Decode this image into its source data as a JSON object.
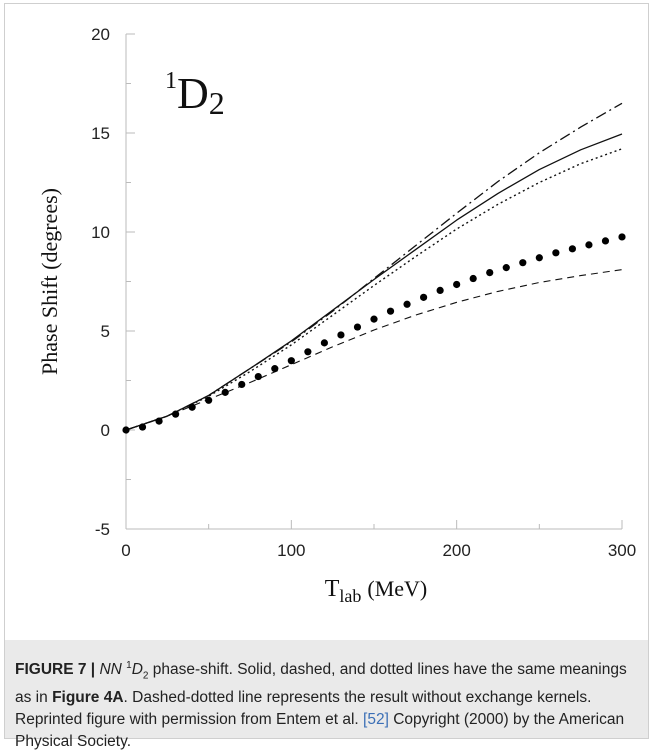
{
  "chart_data": {
    "type": "line",
    "panel_label": "D",
    "panel_label_prefix": "1",
    "panel_label_sub": "2",
    "xlabel_main": "T",
    "xlabel_sub": "lab",
    "xlabel_unit": "(MeV)",
    "ylabel": "Phase Shift (degrees)",
    "xlim": [
      0,
      300
    ],
    "ylim": [
      -5,
      20
    ],
    "xticks": [
      0,
      100,
      200,
      300
    ],
    "yticks": [
      -5,
      0,
      5,
      10,
      15,
      20
    ],
    "x": [
      0,
      25,
      50,
      75,
      100,
      125,
      150,
      175,
      200,
      225,
      250,
      275,
      300
    ],
    "series": [
      {
        "style": "solid",
        "values": [
          0,
          0.7,
          1.75,
          3.1,
          4.5,
          6.05,
          7.6,
          9.1,
          10.6,
          11.95,
          13.15,
          14.15,
          14.95
        ]
      },
      {
        "style": "dashed",
        "values": [
          0,
          0.7,
          1.55,
          2.4,
          3.3,
          4.2,
          5.05,
          5.8,
          6.45,
          7.0,
          7.45,
          7.8,
          8.1
        ]
      },
      {
        "style": "dotted",
        "values": [
          0,
          0.7,
          1.7,
          2.95,
          4.3,
          5.8,
          7.3,
          8.75,
          10.15,
          11.4,
          12.5,
          13.45,
          14.2
        ]
      },
      {
        "style": "dash-dot",
        "values": [
          0,
          0.7,
          1.75,
          3.1,
          4.45,
          6.0,
          7.65,
          9.3,
          10.95,
          12.55,
          14.0,
          15.3,
          16.5
        ]
      }
    ],
    "points": {
      "x": [
        0,
        10,
        20,
        30,
        40,
        50,
        60,
        70,
        80,
        90,
        100,
        110,
        120,
        130,
        140,
        150,
        160,
        170,
        180,
        190,
        200,
        210,
        220,
        230,
        240,
        250,
        260,
        270,
        280,
        290,
        300
      ],
      "y": [
        0,
        0.15,
        0.45,
        0.8,
        1.15,
        1.5,
        1.9,
        2.3,
        2.7,
        3.1,
        3.5,
        3.95,
        4.4,
        4.8,
        5.2,
        5.6,
        6.0,
        6.35,
        6.7,
        7.05,
        7.35,
        7.65,
        7.95,
        8.2,
        8.45,
        8.7,
        8.95,
        9.15,
        9.35,
        9.55,
        9.75
      ]
    }
  },
  "caption": {
    "label": "FIGURE 7 |",
    "t1": " ",
    "nn": "NN",
    "sup": "1",
    "d": "D",
    "dsub": "2",
    "t2": " phase-shift. Solid, dashed, and dotted lines have the same meanings as in ",
    "ref1": "Figure 4A",
    "t3": ". Dashed-dotted line represents the result without exchange kernels. Reprinted figure with permission from Entem et al. ",
    "ref2": "[52]",
    "t4": " Copyright (2000) by the American Physical Society."
  }
}
